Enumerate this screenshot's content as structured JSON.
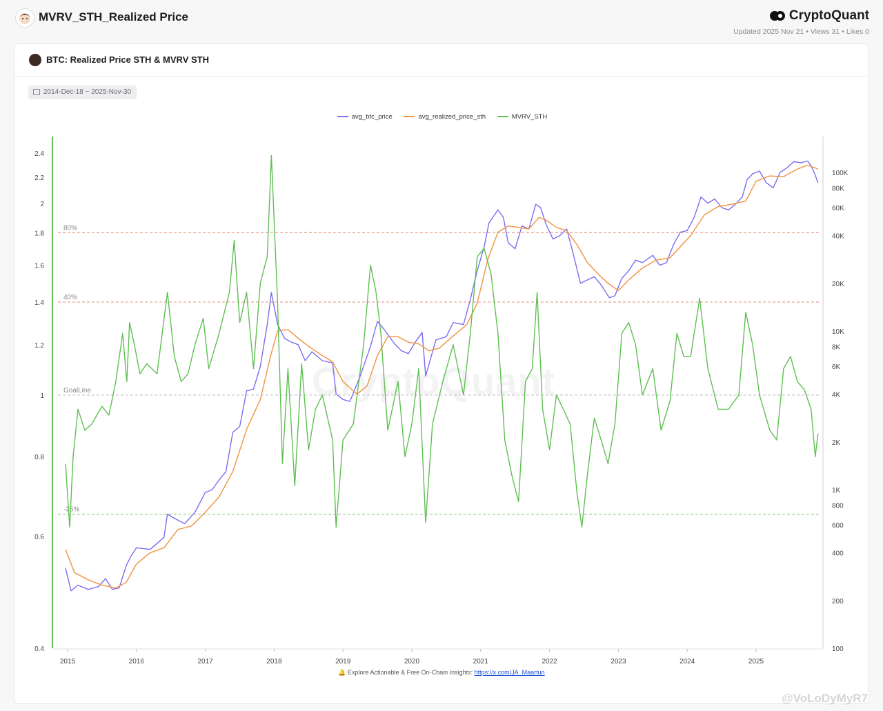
{
  "page": {
    "title": "MVRV_STH_Realized Price",
    "brand": "CryptoQuant",
    "meta": "Updated 2025 Nov 21 • Views 31 • Likes 0"
  },
  "card": {
    "title": "BTC: Realized Price STH & MVRV STH",
    "date_range": "2014-Dec-18 ~ 2025-Nov-30"
  },
  "footer": {
    "text": "Explore Actionable & Free On-Chain Insights: ",
    "link": "https://x.com/JA_Maartun"
  },
  "watermark": "CryptoQuant",
  "overlay_watermark": "@VoLoDyMyR7",
  "colors": {
    "btc_price": "#7b6cf0",
    "realized": "#f0984a",
    "mvrv": "#5fbf52",
    "ref_red": "#e58a7c",
    "ref_green": "#76c468",
    "ref_gray": "#b9b9c0"
  },
  "chart_data": {
    "type": "line",
    "x_ticks": [
      "2015",
      "2016",
      "2017",
      "2018",
      "2019",
      "2020",
      "2021",
      "2022",
      "2023",
      "2024",
      "2025"
    ],
    "left_axis": {
      "scale": "log",
      "ticks": [
        "0.4",
        "0.6",
        "0.8",
        "1",
        "1.2",
        "1.4",
        "1.6",
        "1.8",
        "2",
        "2.2",
        "2.4"
      ]
    },
    "right_axis": {
      "scale": "log",
      "ticks": [
        "100",
        "200",
        "400",
        "600",
        "800",
        "1K",
        "2K",
        "4K",
        "6K",
        "8K",
        "10K",
        "20K",
        "40K",
        "60K",
        "80K",
        "100K"
      ]
    },
    "reference_lines": [
      {
        "label": "80%",
        "value": 1.8,
        "color": "red"
      },
      {
        "label": "40%",
        "value": 1.4,
        "color": "red"
      },
      {
        "label": "GoalLine",
        "value": 1.0,
        "color": "gray"
      },
      {
        "label": "-35%",
        "value": 0.65,
        "color": "green"
      }
    ],
    "series": [
      {
        "name": "avg_btc_price",
        "axis": "right",
        "points": [
          [
            2014.97,
            320
          ],
          [
            2015.05,
            230
          ],
          [
            2015.15,
            250
          ],
          [
            2015.3,
            235
          ],
          [
            2015.45,
            245
          ],
          [
            2015.55,
            275
          ],
          [
            2015.65,
            235
          ],
          [
            2015.75,
            240
          ],
          [
            2015.85,
            330
          ],
          [
            2015.92,
            380
          ],
          [
            2016.0,
            430
          ],
          [
            2016.2,
            420
          ],
          [
            2016.4,
            500
          ],
          [
            2016.45,
            700
          ],
          [
            2016.55,
            660
          ],
          [
            2016.7,
            610
          ],
          [
            2016.85,
            720
          ],
          [
            2017.0,
            960
          ],
          [
            2017.1,
            1000
          ],
          [
            2017.2,
            1150
          ],
          [
            2017.3,
            1300
          ],
          [
            2017.4,
            2300
          ],
          [
            2017.5,
            2500
          ],
          [
            2017.6,
            4200
          ],
          [
            2017.7,
            4300
          ],
          [
            2017.8,
            6000
          ],
          [
            2017.9,
            11000
          ],
          [
            2017.96,
            17500
          ],
          [
            2018.05,
            11000
          ],
          [
            2018.15,
            9000
          ],
          [
            2018.25,
            8500
          ],
          [
            2018.35,
            8200
          ],
          [
            2018.45,
            6500
          ],
          [
            2018.55,
            7400
          ],
          [
            2018.7,
            6500
          ],
          [
            2018.85,
            6300
          ],
          [
            2018.9,
            4000
          ],
          [
            2019.0,
            3700
          ],
          [
            2019.1,
            3600
          ],
          [
            2019.25,
            5200
          ],
          [
            2019.4,
            8000
          ],
          [
            2019.5,
            11500
          ],
          [
            2019.6,
            10200
          ],
          [
            2019.75,
            8300
          ],
          [
            2019.85,
            7500
          ],
          [
            2019.95,
            7200
          ],
          [
            2020.05,
            8500
          ],
          [
            2020.15,
            9800
          ],
          [
            2020.2,
            5200
          ],
          [
            2020.35,
            8800
          ],
          [
            2020.5,
            9200
          ],
          [
            2020.6,
            11300
          ],
          [
            2020.75,
            11000
          ],
          [
            2020.85,
            15800
          ],
          [
            2020.95,
            24000
          ],
          [
            2021.05,
            34000
          ],
          [
            2021.12,
            48000
          ],
          [
            2021.25,
            58000
          ],
          [
            2021.33,
            52000
          ],
          [
            2021.4,
            36000
          ],
          [
            2021.5,
            33000
          ],
          [
            2021.6,
            46000
          ],
          [
            2021.7,
            44000
          ],
          [
            2021.8,
            63000
          ],
          [
            2021.87,
            60000
          ],
          [
            2021.95,
            47000
          ],
          [
            2022.05,
            38000
          ],
          [
            2022.15,
            40000
          ],
          [
            2022.25,
            44000
          ],
          [
            2022.35,
            30000
          ],
          [
            2022.45,
            20000
          ],
          [
            2022.55,
            21000
          ],
          [
            2022.65,
            22000
          ],
          [
            2022.75,
            19500
          ],
          [
            2022.87,
            16200
          ],
          [
            2022.95,
            16700
          ],
          [
            2023.05,
            21500
          ],
          [
            2023.15,
            24000
          ],
          [
            2023.25,
            28000
          ],
          [
            2023.35,
            27000
          ],
          [
            2023.5,
            30000
          ],
          [
            2023.6,
            26000
          ],
          [
            2023.7,
            27000
          ],
          [
            2023.8,
            35000
          ],
          [
            2023.9,
            42000
          ],
          [
            2024.0,
            43000
          ],
          [
            2024.1,
            52000
          ],
          [
            2024.2,
            70000
          ],
          [
            2024.3,
            64000
          ],
          [
            2024.4,
            68000
          ],
          [
            2024.5,
            60000
          ],
          [
            2024.6,
            58000
          ],
          [
            2024.7,
            63000
          ],
          [
            2024.8,
            70000
          ],
          [
            2024.87,
            90000
          ],
          [
            2024.95,
            98000
          ],
          [
            2025.05,
            102000
          ],
          [
            2025.15,
            86000
          ],
          [
            2025.25,
            80000
          ],
          [
            2025.35,
            100000
          ],
          [
            2025.45,
            107000
          ],
          [
            2025.55,
            117000
          ],
          [
            2025.65,
            115000
          ],
          [
            2025.75,
            118000
          ],
          [
            2025.8,
            110000
          ],
          [
            2025.86,
            96000
          ],
          [
            2025.9,
            86000
          ]
        ]
      },
      {
        "name": "avg_realized_price_sth",
        "axis": "right",
        "points": [
          [
            2014.97,
            420
          ],
          [
            2015.1,
            300
          ],
          [
            2015.3,
            270
          ],
          [
            2015.5,
            250
          ],
          [
            2015.7,
            240
          ],
          [
            2015.85,
            260
          ],
          [
            2016.0,
            340
          ],
          [
            2016.2,
            400
          ],
          [
            2016.4,
            430
          ],
          [
            2016.6,
            560
          ],
          [
            2016.8,
            590
          ],
          [
            2017.0,
            720
          ],
          [
            2017.2,
            900
          ],
          [
            2017.4,
            1300
          ],
          [
            2017.6,
            2400
          ],
          [
            2017.8,
            3700
          ],
          [
            2017.95,
            7000
          ],
          [
            2018.05,
            10000
          ],
          [
            2018.2,
            10200
          ],
          [
            2018.35,
            9000
          ],
          [
            2018.5,
            8000
          ],
          [
            2018.7,
            7000
          ],
          [
            2018.85,
            6400
          ],
          [
            2019.0,
            4800
          ],
          [
            2019.2,
            4000
          ],
          [
            2019.35,
            4500
          ],
          [
            2019.5,
            7000
          ],
          [
            2019.65,
            9200
          ],
          [
            2019.8,
            9200
          ],
          [
            2019.95,
            8500
          ],
          [
            2020.1,
            8300
          ],
          [
            2020.25,
            7500
          ],
          [
            2020.4,
            7800
          ],
          [
            2020.6,
            9300
          ],
          [
            2020.8,
            11000
          ],
          [
            2020.95,
            15000
          ],
          [
            2021.1,
            28000
          ],
          [
            2021.25,
            42000
          ],
          [
            2021.4,
            46000
          ],
          [
            2021.55,
            45000
          ],
          [
            2021.7,
            44000
          ],
          [
            2021.85,
            52000
          ],
          [
            2021.95,
            50000
          ],
          [
            2022.1,
            45000
          ],
          [
            2022.25,
            43000
          ],
          [
            2022.4,
            35000
          ],
          [
            2022.55,
            27000
          ],
          [
            2022.7,
            23000
          ],
          [
            2022.85,
            20000
          ],
          [
            2023.0,
            18000
          ],
          [
            2023.15,
            21000
          ],
          [
            2023.35,
            25000
          ],
          [
            2023.55,
            28000
          ],
          [
            2023.75,
            29000
          ],
          [
            2023.9,
            34000
          ],
          [
            2024.05,
            40000
          ],
          [
            2024.25,
            54000
          ],
          [
            2024.45,
            61000
          ],
          [
            2024.65,
            63000
          ],
          [
            2024.85,
            66000
          ],
          [
            2025.0,
            88000
          ],
          [
            2025.2,
            95000
          ],
          [
            2025.4,
            94000
          ],
          [
            2025.6,
            105000
          ],
          [
            2025.75,
            111000
          ],
          [
            2025.9,
            105000
          ]
        ]
      },
      {
        "name": "MVRV_STH",
        "axis": "left",
        "points": [
          [
            2014.97,
            0.78
          ],
          [
            2015.03,
            0.62
          ],
          [
            2015.08,
            0.8
          ],
          [
            2015.15,
            0.95
          ],
          [
            2015.25,
            0.88
          ],
          [
            2015.35,
            0.9
          ],
          [
            2015.5,
            0.96
          ],
          [
            2015.6,
            0.93
          ],
          [
            2015.7,
            1.05
          ],
          [
            2015.8,
            1.25
          ],
          [
            2015.86,
            1.05
          ],
          [
            2015.9,
            1.3
          ],
          [
            2015.97,
            1.2
          ],
          [
            2016.05,
            1.08
          ],
          [
            2016.15,
            1.12
          ],
          [
            2016.3,
            1.08
          ],
          [
            2016.45,
            1.45
          ],
          [
            2016.55,
            1.15
          ],
          [
            2016.65,
            1.05
          ],
          [
            2016.75,
            1.08
          ],
          [
            2016.85,
            1.2
          ],
          [
            2016.97,
            1.32
          ],
          [
            2017.05,
            1.1
          ],
          [
            2017.2,
            1.25
          ],
          [
            2017.35,
            1.45
          ],
          [
            2017.42,
            1.75
          ],
          [
            2017.5,
            1.3
          ],
          [
            2017.6,
            1.45
          ],
          [
            2017.7,
            1.1
          ],
          [
            2017.8,
            1.5
          ],
          [
            2017.9,
            1.65
          ],
          [
            2017.96,
            2.38
          ],
          [
            2018.05,
            1.4
          ],
          [
            2018.12,
            0.78
          ],
          [
            2018.2,
            1.1
          ],
          [
            2018.3,
            0.72
          ],
          [
            2018.4,
            1.12
          ],
          [
            2018.5,
            0.82
          ],
          [
            2018.6,
            0.95
          ],
          [
            2018.7,
            1.0
          ],
          [
            2018.85,
            0.85
          ],
          [
            2018.9,
            0.62
          ],
          [
            2019.0,
            0.85
          ],
          [
            2019.15,
            0.9
          ],
          [
            2019.3,
            1.2
          ],
          [
            2019.4,
            1.6
          ],
          [
            2019.48,
            1.45
          ],
          [
            2019.55,
            1.25
          ],
          [
            2019.65,
            0.88
          ],
          [
            2019.8,
            1.05
          ],
          [
            2019.9,
            0.8
          ],
          [
            2020.0,
            0.9
          ],
          [
            2020.1,
            1.1
          ],
          [
            2020.2,
            0.63
          ],
          [
            2020.3,
            0.9
          ],
          [
            2020.45,
            1.05
          ],
          [
            2020.6,
            1.2
          ],
          [
            2020.75,
            1.0
          ],
          [
            2020.85,
            1.25
          ],
          [
            2020.95,
            1.65
          ],
          [
            2021.05,
            1.7
          ],
          [
            2021.15,
            1.55
          ],
          [
            2021.25,
            1.25
          ],
          [
            2021.35,
            0.85
          ],
          [
            2021.45,
            0.75
          ],
          [
            2021.55,
            0.68
          ],
          [
            2021.65,
            1.05
          ],
          [
            2021.75,
            1.1
          ],
          [
            2021.82,
            1.45
          ],
          [
            2021.9,
            0.95
          ],
          [
            2022.0,
            0.82
          ],
          [
            2022.1,
            1.0
          ],
          [
            2022.2,
            0.95
          ],
          [
            2022.3,
            0.9
          ],
          [
            2022.4,
            0.7
          ],
          [
            2022.47,
            0.62
          ],
          [
            2022.55,
            0.75
          ],
          [
            2022.65,
            0.92
          ],
          [
            2022.75,
            0.85
          ],
          [
            2022.85,
            0.78
          ],
          [
            2022.95,
            0.9
          ],
          [
            2023.05,
            1.25
          ],
          [
            2023.15,
            1.3
          ],
          [
            2023.25,
            1.2
          ],
          [
            2023.35,
            1.0
          ],
          [
            2023.5,
            1.1
          ],
          [
            2023.62,
            0.88
          ],
          [
            2023.75,
            0.98
          ],
          [
            2023.85,
            1.25
          ],
          [
            2023.95,
            1.15
          ],
          [
            2024.05,
            1.15
          ],
          [
            2024.18,
            1.42
          ],
          [
            2024.3,
            1.1
          ],
          [
            2024.45,
            0.95
          ],
          [
            2024.6,
            0.95
          ],
          [
            2024.75,
            1.0
          ],
          [
            2024.85,
            1.35
          ],
          [
            2024.95,
            1.2
          ],
          [
            2025.05,
            1.0
          ],
          [
            2025.2,
            0.88
          ],
          [
            2025.3,
            0.85
          ],
          [
            2025.4,
            1.1
          ],
          [
            2025.5,
            1.15
          ],
          [
            2025.6,
            1.05
          ],
          [
            2025.7,
            1.02
          ],
          [
            2025.8,
            0.95
          ],
          [
            2025.86,
            0.8
          ],
          [
            2025.9,
            0.87
          ]
        ]
      }
    ]
  }
}
